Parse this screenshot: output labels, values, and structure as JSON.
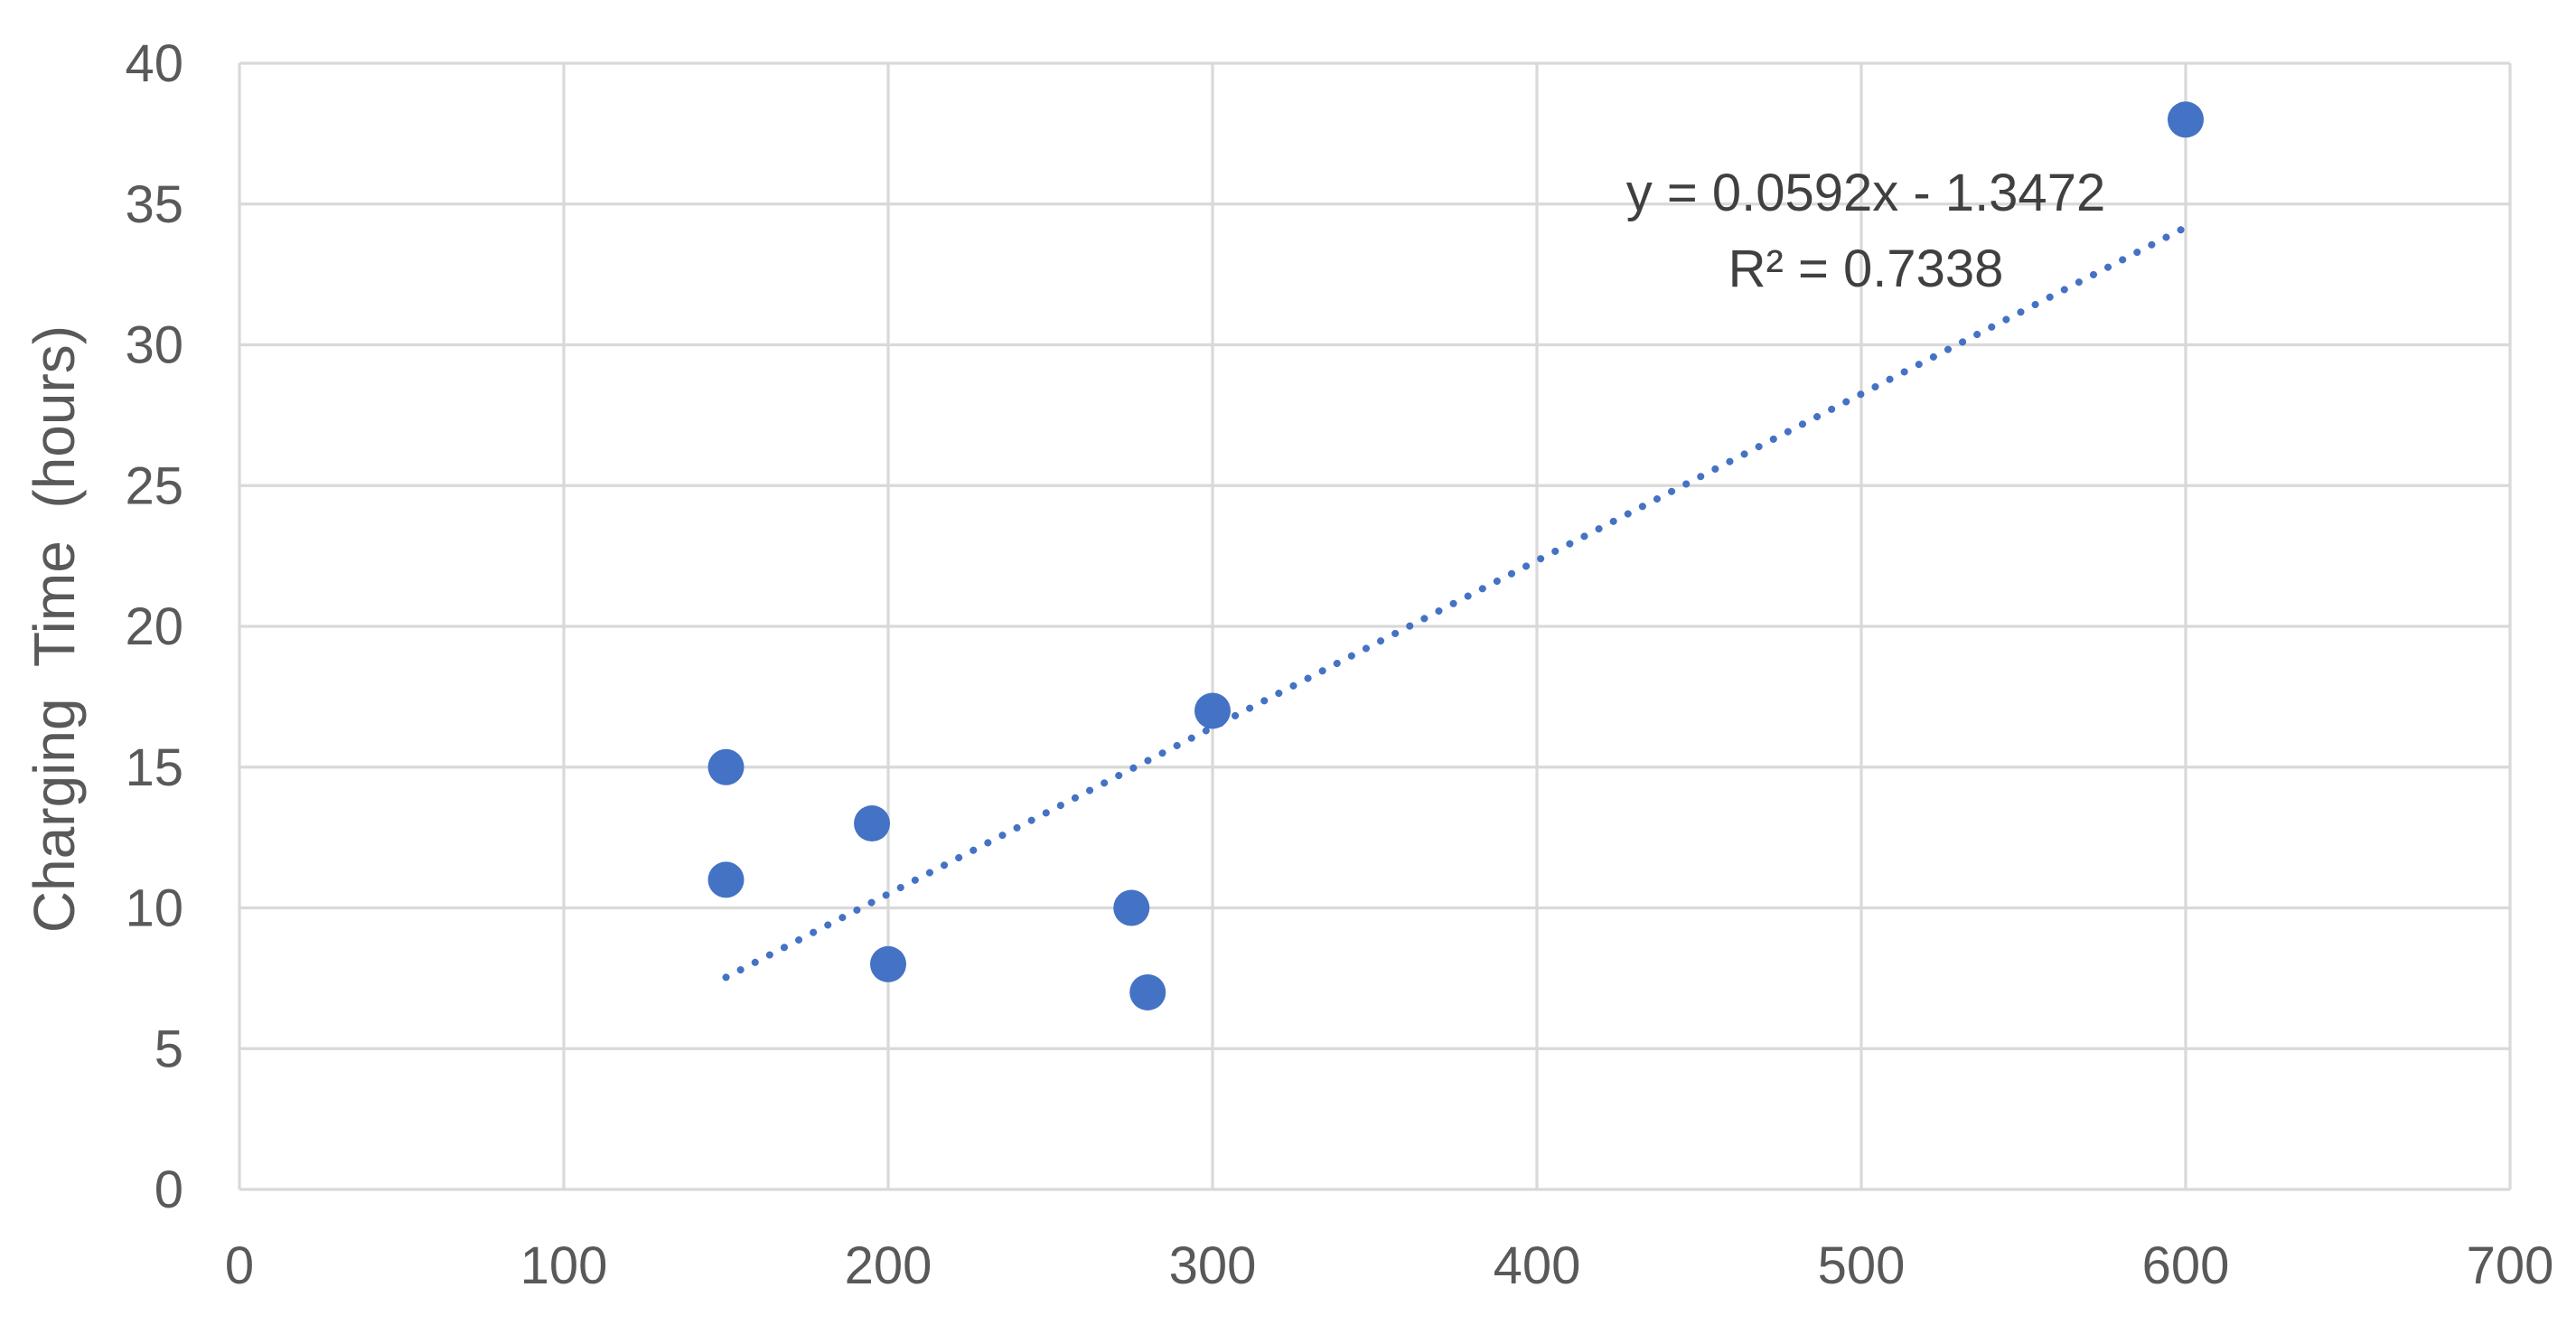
{
  "chart_data": {
    "type": "scatter",
    "title": "",
    "xlabel": "",
    "ylabel": "Charging  Time  (hours)",
    "xlim": [
      0,
      700
    ],
    "ylim": [
      0,
      40
    ],
    "xticks": [
      0,
      100,
      200,
      300,
      400,
      500,
      600,
      700
    ],
    "yticks": [
      0,
      5,
      10,
      15,
      20,
      25,
      30,
      35,
      40
    ],
    "grid": true,
    "legend": "none",
    "color": "#4472c4",
    "series": [
      {
        "points": [
          {
            "x": 150,
            "y": 15
          },
          {
            "x": 150,
            "y": 11
          },
          {
            "x": 195,
            "y": 13
          },
          {
            "x": 200,
            "y": 8
          },
          {
            "x": 275,
            "y": 10
          },
          {
            "x": 280,
            "y": 7
          },
          {
            "x": 300,
            "y": 17
          },
          {
            "x": 600,
            "y": 38
          }
        ]
      }
    ],
    "trendline": {
      "type": "linear",
      "slope": 0.0592,
      "intercept": -1.3472,
      "x_range": [
        150,
        600
      ],
      "style": "dotted",
      "equation_label": "y = 0.0592x - 1.3472",
      "r2_label": "R² = 0.7338"
    }
  }
}
